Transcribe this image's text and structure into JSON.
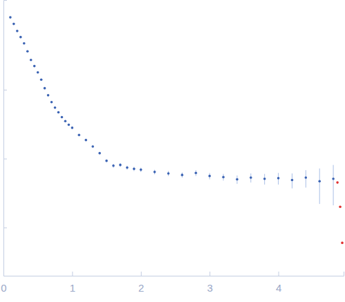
{
  "chart_data": {
    "type": "scatter",
    "log": "y",
    "tick_labels": "x",
    "xlim": [
      0,
      4.95
    ],
    "xticks": [
      0,
      1,
      2,
      3,
      4
    ],
    "ylim": [
      0.0002,
      2
    ],
    "yticks": [
      0.001,
      0.01,
      0.1
    ],
    "series": [
      {
        "color": "#3b63b3",
        "marker": "circle",
        "x": [
          0.1,
          0.15,
          0.2,
          0.25,
          0.3,
          0.35,
          0.4,
          0.45,
          0.5,
          0.55,
          0.6,
          0.65,
          0.7,
          0.75,
          0.8,
          0.85,
          0.9,
          0.95,
          1.0,
          1.1,
          1.2,
          1.3,
          1.4,
          1.5,
          1.6,
          1.7,
          1.8,
          1.9,
          2.0,
          2.2,
          2.4,
          2.6,
          2.8,
          3.0,
          3.2,
          3.4,
          3.6,
          3.8,
          4.0,
          4.2,
          4.4,
          4.6,
          4.8
        ],
        "values": [
          1.12,
          0.9,
          0.71,
          0.58,
          0.47,
          0.36,
          0.27,
          0.22,
          0.178,
          0.14,
          0.105,
          0.083,
          0.066,
          0.055,
          0.047,
          0.04,
          0.035,
          0.031,
          0.028,
          0.022,
          0.0186,
          0.015,
          0.012,
          0.0093,
          0.0079,
          0.0081,
          0.0074,
          0.0071,
          0.0069,
          0.0064,
          0.0061,
          0.0058,
          0.0062,
          0.0056,
          0.0054,
          0.005,
          0.0053,
          0.0051,
          0.0052,
          0.0049,
          0.0053,
          0.0047,
          0.0051
        ],
        "errors": [
          0.01,
          0.008,
          0.006,
          0.005,
          0.004,
          0.003,
          0.002,
          0.0015,
          0.0012,
          0.001,
          0.0008,
          0.0006,
          0.0005,
          0.0004,
          0.0004,
          0.0004,
          0.0004,
          0.0004,
          0.0004,
          0.0004,
          0.0004,
          0.0004,
          0.0004,
          0.0004,
          0.0005,
          0.0005,
          0.0005,
          0.0005,
          0.0005,
          0.0005,
          0.0005,
          0.0005,
          0.0006,
          0.0006,
          0.0006,
          0.0007,
          0.0008,
          0.0009,
          0.001,
          0.0012,
          0.0015,
          0.0025,
          0.003
        ]
      },
      {
        "color": "#e03030",
        "marker": "circle",
        "x": [
          4.86,
          4.9,
          4.93
        ],
        "values": [
          0.0045,
          0.002,
          0.0006
        ]
      }
    ]
  }
}
